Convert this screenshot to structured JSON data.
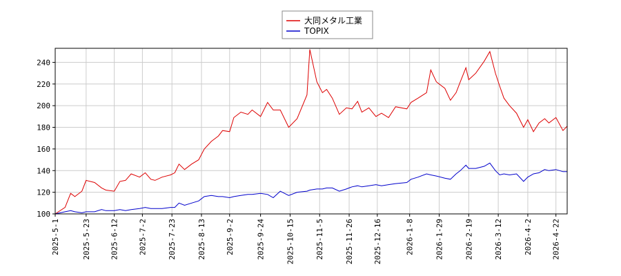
{
  "chart_data": {
    "type": "line",
    "x": [
      "2025-5-1",
      "2025-5-8",
      "2025-5-12",
      "2025-5-15",
      "2025-5-20",
      "2025-5-23",
      "2025-5-29",
      "2025-6-3",
      "2025-6-6",
      "2025-6-12",
      "2025-6-16",
      "2025-6-20",
      "2025-6-24",
      "2025-6-30",
      "2025-7-4",
      "2025-7-8",
      "2025-7-11",
      "2025-7-16",
      "2025-7-22",
      "2025-7-25",
      "2025-7-28",
      "2025-8-1",
      "2025-8-6",
      "2025-8-11",
      "2025-8-15",
      "2025-8-20",
      "2025-8-25",
      "2025-8-28",
      "2025-9-2",
      "2025-9-5",
      "2025-9-10",
      "2025-9-15",
      "2025-9-18",
      "2025-9-24",
      "2025-9-29",
      "2025-10-3",
      "2025-10-8",
      "2025-10-14",
      "2025-10-20",
      "2025-10-27",
      "2025-10-29",
      "2025-11-3",
      "2025-11-7",
      "2025-11-10",
      "2025-11-14",
      "2025-11-19",
      "2025-11-24",
      "2025-11-28",
      "2025-12-2",
      "2025-12-5",
      "2025-12-10",
      "2025-12-15",
      "2025-12-19",
      "2025-12-24",
      "2025-12-29",
      "2026-1-6",
      "2026-1-9",
      "2026-1-14",
      "2026-1-20",
      "2026-1-23",
      "2026-1-27",
      "2026-2-2",
      "2026-2-6",
      "2026-2-10",
      "2026-2-13",
      "2026-2-17",
      "2026-2-19",
      "2026-2-24",
      "2026-3-2",
      "2026-3-6",
      "2026-3-10",
      "2026-3-13",
      "2026-3-16",
      "2026-3-20",
      "2026-3-25",
      "2026-3-30",
      "2026-4-2",
      "2026-4-6",
      "2026-4-10",
      "2026-4-14",
      "2026-4-17",
      "2026-4-22",
      "2026-4-27",
      "2026-4-30"
    ],
    "series": [
      {
        "name": "大同メタル工業",
        "color": "#dd0000",
        "values": [
          100,
          106,
          119,
          116,
          121,
          131,
          129,
          124,
          122,
          121,
          130,
          131,
          137,
          134,
          138,
          132,
          131,
          134,
          136,
          138,
          146,
          141,
          146,
          150,
          160,
          167,
          172,
          177,
          176,
          189,
          194,
          192,
          196,
          190,
          203,
          196,
          196,
          180,
          188,
          210,
          252,
          222,
          212,
          215,
          207,
          192,
          198,
          197,
          204,
          194,
          198,
          190,
          193,
          189,
          199,
          197,
          203,
          207,
          212,
          233,
          222,
          216,
          205,
          212,
          222,
          235,
          224,
          230,
          241,
          250,
          230,
          218,
          207,
          200,
          193,
          180,
          187,
          176,
          184,
          188,
          184,
          189,
          177,
          181
        ]
      },
      {
        "name": "TOPIX",
        "color": "#0000cc",
        "values": [
          100,
          102,
          103,
          102,
          101,
          102,
          102,
          104,
          103,
          103,
          104,
          103,
          104,
          105,
          106,
          105,
          105,
          105,
          106,
          106,
          110,
          108,
          110,
          112,
          116,
          117,
          116,
          116,
          115,
          116,
          117,
          118,
          118,
          119,
          118,
          115,
          121,
          117,
          120,
          121,
          122,
          123,
          123,
          124,
          124,
          121,
          123,
          125,
          126,
          125,
          126,
          127,
          126,
          127,
          128,
          129,
          132,
          134,
          137,
          136,
          135,
          133,
          132,
          137,
          140,
          145,
          142,
          142,
          144,
          147,
          140,
          136,
          137,
          136,
          137,
          130,
          134,
          137,
          138,
          141,
          140,
          141,
          139,
          139
        ]
      }
    ],
    "xlim": [
      "2025-5-1",
      "2026-4-30"
    ],
    "xticks": [
      "2025-5-1",
      "2025-5-23",
      "2025-6-12",
      "2025-7-2",
      "2025-7-23",
      "2025-8-13",
      "2025-9-2",
      "2025-9-24",
      "2025-10-15",
      "2025-11-5",
      "2025-11-26",
      "2025-12-16",
      "2026-1-8",
      "2026-1-29",
      "2026-2-19",
      "2026-3-12",
      "2026-4-2",
      "2026-4-22"
    ],
    "ylim": [
      100,
      253
    ],
    "yticks": [
      100,
      120,
      140,
      160,
      180,
      200,
      220,
      240
    ],
    "grid": true,
    "legend": "top"
  }
}
